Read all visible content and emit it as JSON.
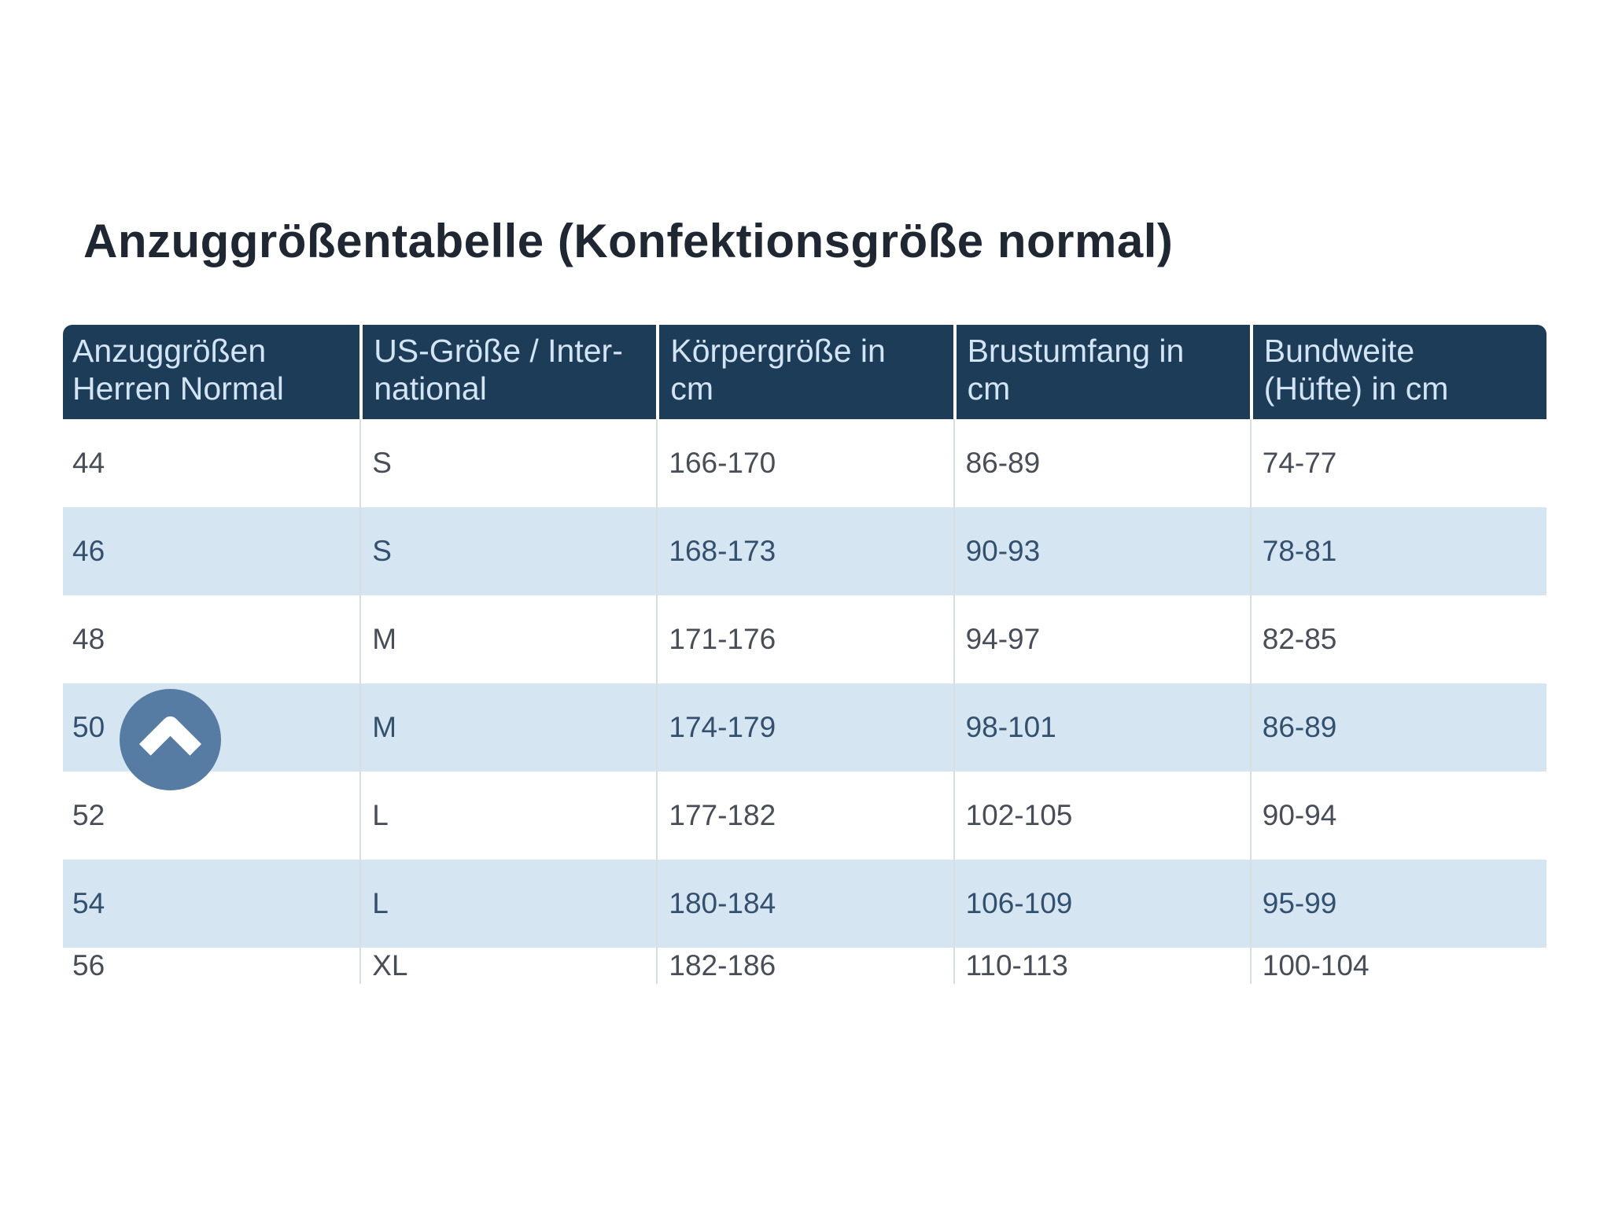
{
  "page": {
    "title": "Anzuggrößentabelle (Konfektionsgröße normal)"
  },
  "colors": {
    "page_background": "#ffffff",
    "title_text": "#1f2733",
    "header_background": "#1d3c57",
    "header_text": "#d3e5f4",
    "row_background": "#ffffff",
    "row_alt_background": "#d5e6f2",
    "row_text": "#474e57",
    "row_alt_text": "#33506e",
    "column_divider": "#d8dde2",
    "scroll_button_background": "#567ca4",
    "scroll_button_arrow": "#ffffff"
  },
  "table": {
    "columns": [
      "Anzuggrößen\nHerren Normal",
      "US-Größe / Inter-\nnational",
      "Körpergröße in\ncm",
      "Brustumfang in\ncm",
      "Bundweite\n(Hüfte) in cm"
    ],
    "rows": [
      [
        "44",
        "S",
        "166-170",
        "86-89",
        "74-77"
      ],
      [
        "46",
        "S",
        "168-173",
        "90-93",
        "78-81"
      ],
      [
        "48",
        "M",
        "171-176",
        "94-97",
        "82-85"
      ],
      [
        "50",
        "M",
        "174-179",
        "98-101",
        "86-89"
      ],
      [
        "52",
        "L",
        "177-182",
        "102-105",
        "90-94"
      ],
      [
        "54",
        "L",
        "180-184",
        "106-109",
        "95-99"
      ],
      [
        "56",
        "XL",
        "182-186",
        "110-113",
        "100-104"
      ]
    ]
  },
  "scroll_top_button": {
    "icon": "chevron-up-icon"
  }
}
